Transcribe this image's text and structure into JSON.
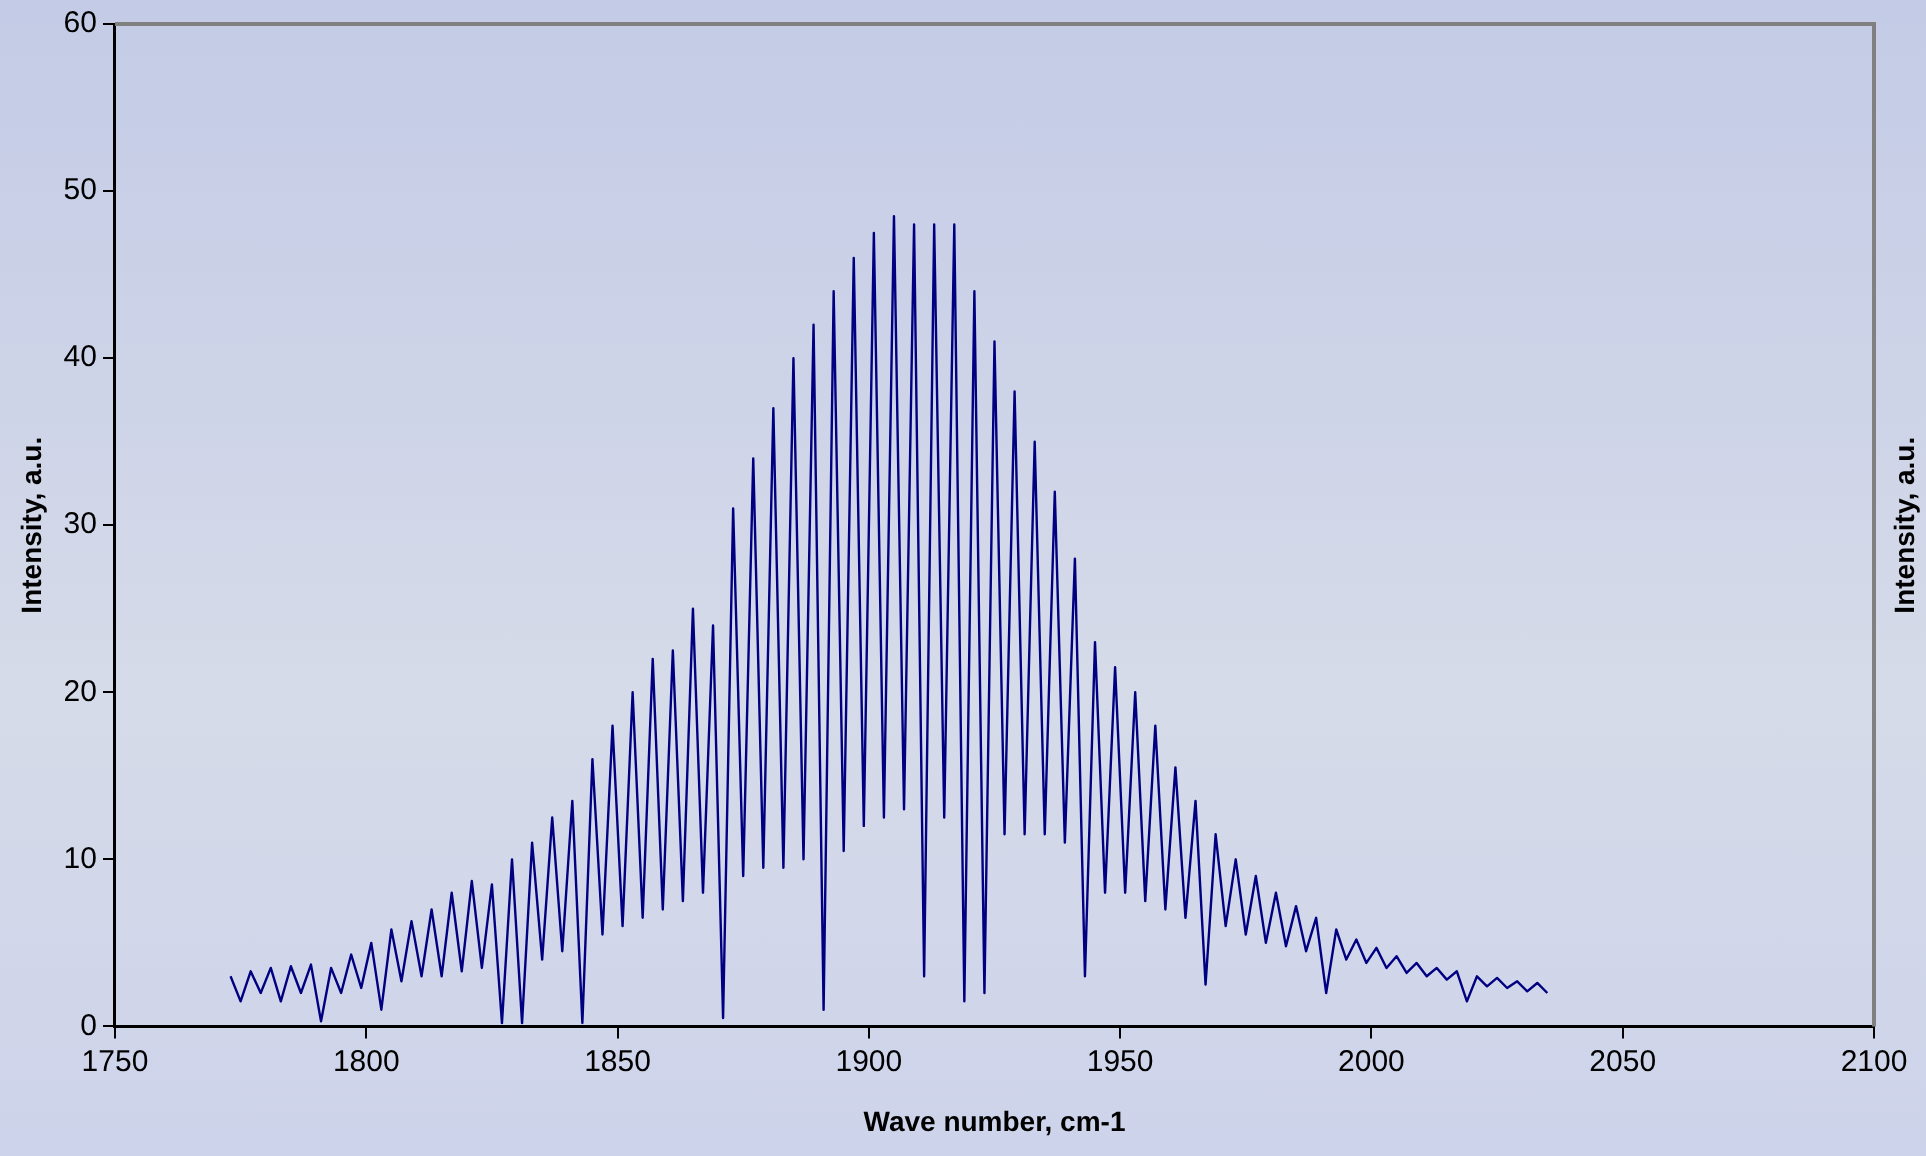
{
  "chart_data": {
    "type": "line",
    "xlabel": "Wave number, cm-1",
    "ylabel": "Intensity, a.u.",
    "y2label": "Intensity, a.u.",
    "x": [
      1773,
      1775,
      1777,
      1779,
      1781,
      1783,
      1785,
      1787,
      1789,
      1791,
      1793,
      1795,
      1797,
      1799,
      1801,
      1803,
      1805,
      1807,
      1809,
      1811,
      1813,
      1815,
      1817,
      1819,
      1821,
      1823,
      1825,
      1827,
      1829,
      1831,
      1833,
      1835,
      1837,
      1839,
      1841,
      1843,
      1845,
      1847,
      1849,
      1851,
      1853,
      1855,
      1857,
      1859,
      1861,
      1863,
      1865,
      1867,
      1869,
      1871,
      1873,
      1875,
      1877,
      1879,
      1881,
      1883,
      1885,
      1887,
      1889,
      1891,
      1893,
      1895,
      1897,
      1899,
      1901,
      1903,
      1905,
      1907,
      1909,
      1911,
      1913,
      1915,
      1917,
      1919,
      1921,
      1923,
      1925,
      1927,
      1929,
      1931,
      1933,
      1935,
      1937,
      1939,
      1941,
      1943,
      1945,
      1947,
      1949,
      1951,
      1953,
      1955,
      1957,
      1959,
      1961,
      1963,
      1965,
      1967,
      1969,
      1971,
      1973,
      1975,
      1977,
      1979,
      1981,
      1983,
      1985,
      1987,
      1989,
      1991,
      1993,
      1995,
      1997,
      1999,
      2001,
      2003,
      2005,
      2007,
      2009,
      2011,
      2013,
      2015,
      2017,
      2019,
      2021,
      2023,
      2025,
      2027,
      2029,
      2031,
      2033,
      2035
    ],
    "series": [
      {
        "color": "#000080",
        "values": [
          3.0,
          1.5,
          3.3,
          2.0,
          3.5,
          1.5,
          3.6,
          2.0,
          3.7,
          0.3,
          3.5,
          2.0,
          4.3,
          2.3,
          5.0,
          1.0,
          5.8,
          2.7,
          6.3,
          3.0,
          7.0,
          3.0,
          8.0,
          3.3,
          8.7,
          3.5,
          8.5,
          0.2,
          10.0,
          0.2,
          11.0,
          4.0,
          12.5,
          4.5,
          13.5,
          0.2,
          16.0,
          5.5,
          18.0,
          6.0,
          20.0,
          6.5,
          22.0,
          7.0,
          22.5,
          7.5,
          25.0,
          8.0,
          24.0,
          0.5,
          31.0,
          9.0,
          34.0,
          9.5,
          37.0,
          9.5,
          40.0,
          10.0,
          42.0,
          1.0,
          44.0,
          10.5,
          46.0,
          12.0,
          47.5,
          12.5,
          48.5,
          13.0,
          48.0,
          3.0,
          48.0,
          12.5,
          48.0,
          1.5,
          44.0,
          2.0,
          41.0,
          11.5,
          38.0,
          11.5,
          35.0,
          11.5,
          32.0,
          11.0,
          28.0,
          3.0,
          23.0,
          8.0,
          21.5,
          8.0,
          20.0,
          7.5,
          18.0,
          7.0,
          15.5,
          6.5,
          13.5,
          2.5,
          11.5,
          6.0,
          10.0,
          5.5,
          9.0,
          5.0,
          8.0,
          4.8,
          7.2,
          4.5,
          6.5,
          2.0,
          5.8,
          4.0,
          5.2,
          3.8,
          4.7,
          3.5,
          4.2,
          3.2,
          3.8,
          3.0,
          3.5,
          2.8,
          3.3,
          1.5,
          3.0,
          2.4,
          2.9,
          2.3,
          2.7,
          2.1,
          2.6,
          2.0
        ]
      }
    ],
    "xlim": [
      1750,
      2100
    ],
    "xticks": [
      1750,
      1800,
      1850,
      1900,
      1950,
      2000,
      2050,
      2100
    ],
    "ylim": [
      0,
      60
    ],
    "yticks": [
      0,
      10,
      20,
      30,
      40,
      50,
      60
    ],
    "grid": false,
    "legend": false,
    "marker": "none",
    "line_style": "solid"
  }
}
